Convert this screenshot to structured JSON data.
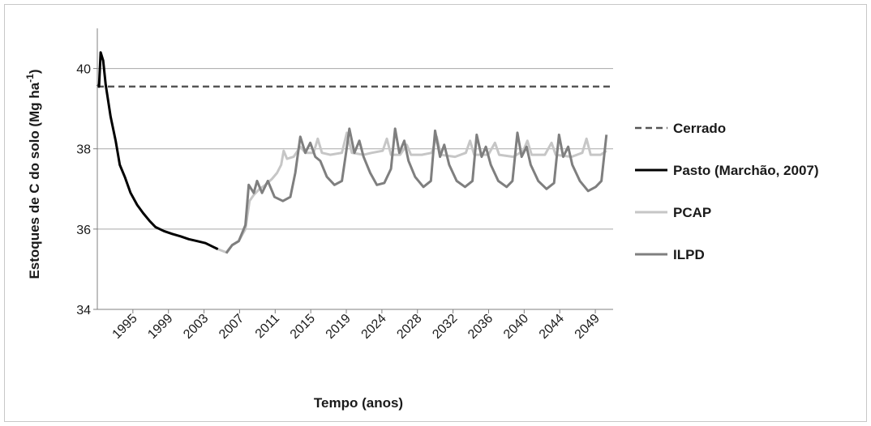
{
  "chart_data": {
    "type": "line",
    "xlabel": "Tempo (anos)",
    "ylabel_main": "Estoques de C do solo (Mg ha",
    "ylabel_sup": "-1",
    "ylabel_close": ")",
    "ylim": [
      34,
      41
    ],
    "yticks": [
      "34",
      "36",
      "38",
      "40"
    ],
    "xlim": [
      1991,
      2053
    ],
    "xtick_labels": [
      "1995",
      "1999",
      "2003",
      "2007",
      "2011",
      "2015",
      "2019",
      "2024",
      "2028",
      "2032",
      "2036",
      "2040",
      "2044",
      "2049"
    ],
    "grid": true,
    "legend_position": "right",
    "series": [
      {
        "name": "Cerrado",
        "color": "#555555",
        "dash": true,
        "points": [
          [
            1991,
            39.55
          ],
          [
            2053,
            39.55
          ]
        ]
      },
      {
        "name": "Pasto (Marchão, 2007)",
        "color": "#000000",
        "points": [
          [
            1991,
            39.6
          ],
          [
            1991.2,
            39.55
          ],
          [
            1991.4,
            40.4
          ],
          [
            1991.7,
            40.2
          ],
          [
            1992,
            39.6
          ],
          [
            1992.6,
            38.8
          ],
          [
            1993.2,
            38.2
          ],
          [
            1993.7,
            37.6
          ],
          [
            1994.3,
            37.3
          ],
          [
            1995,
            36.9
          ],
          [
            1995.8,
            36.6
          ],
          [
            1996.5,
            36.4
          ],
          [
            1997.3,
            36.2
          ],
          [
            1998,
            36.05
          ],
          [
            1999,
            35.95
          ],
          [
            2000,
            35.88
          ],
          [
            2001,
            35.82
          ],
          [
            2002,
            35.75
          ],
          [
            2003,
            35.7
          ],
          [
            2004,
            35.65
          ],
          [
            2005,
            35.55
          ],
          [
            2005.5,
            35.5
          ]
        ]
      },
      {
        "name": "PCAP",
        "color": "#c6c6c6",
        "points": [
          [
            2005.5,
            35.5
          ],
          [
            2006.5,
            35.42
          ],
          [
            2007.2,
            35.6
          ],
          [
            2008,
            35.7
          ],
          [
            2008.8,
            36.0
          ],
          [
            2009.3,
            36.7
          ],
          [
            2009.8,
            36.85
          ],
          [
            2010.5,
            37.0
          ],
          [
            2011.2,
            37.1
          ],
          [
            2012,
            37.25
          ],
          [
            2012.6,
            37.4
          ],
          [
            2013.1,
            37.6
          ],
          [
            2013.4,
            37.95
          ],
          [
            2013.8,
            37.75
          ],
          [
            2014.6,
            37.8
          ],
          [
            2015.4,
            38.05
          ],
          [
            2016,
            37.9
          ],
          [
            2017,
            37.9
          ],
          [
            2017.5,
            38.25
          ],
          [
            2018,
            37.9
          ],
          [
            2019,
            37.85
          ],
          [
            2020.4,
            37.9
          ],
          [
            2021,
            38.4
          ],
          [
            2021.6,
            37.9
          ],
          [
            2023,
            37.85
          ],
          [
            2024,
            37.9
          ],
          [
            2025.3,
            37.95
          ],
          [
            2025.8,
            38.25
          ],
          [
            2026.3,
            37.85
          ],
          [
            2027.4,
            37.85
          ],
          [
            2028.2,
            38.1
          ],
          [
            2028.7,
            37.85
          ],
          [
            2030,
            37.85
          ],
          [
            2031.2,
            37.9
          ],
          [
            2031.8,
            38.3
          ],
          [
            2032.3,
            37.85
          ],
          [
            2034,
            37.8
          ],
          [
            2035.3,
            37.9
          ],
          [
            2035.8,
            38.2
          ],
          [
            2036.3,
            37.85
          ],
          [
            2038,
            37.85
          ],
          [
            2038.8,
            38.15
          ],
          [
            2039.3,
            37.85
          ],
          [
            2041,
            37.8
          ],
          [
            2042.2,
            37.95
          ],
          [
            2042.7,
            38.2
          ],
          [
            2043.2,
            37.85
          ],
          [
            2044.8,
            37.85
          ],
          [
            2045.6,
            38.15
          ],
          [
            2046.1,
            37.85
          ],
          [
            2048,
            37.8
          ],
          [
            2049.3,
            37.9
          ],
          [
            2049.8,
            38.25
          ],
          [
            2050.3,
            37.85
          ],
          [
            2051.5,
            37.85
          ],
          [
            2052.2,
            37.95
          ]
        ]
      },
      {
        "name": "ILPD",
        "color": "#7f7f7f",
        "points": [
          [
            2006.5,
            35.4
          ],
          [
            2007.2,
            35.6
          ],
          [
            2008,
            35.7
          ],
          [
            2008.8,
            36.1
          ],
          [
            2009.2,
            37.1
          ],
          [
            2009.8,
            36.9
          ],
          [
            2010.2,
            37.2
          ],
          [
            2010.8,
            36.9
          ],
          [
            2011.5,
            37.2
          ],
          [
            2012.3,
            36.8
          ],
          [
            2013.3,
            36.7
          ],
          [
            2014.2,
            36.8
          ],
          [
            2014.8,
            37.4
          ],
          [
            2015.4,
            38.3
          ],
          [
            2016,
            37.9
          ],
          [
            2016.6,
            38.15
          ],
          [
            2017.2,
            37.8
          ],
          [
            2017.8,
            37.7
          ],
          [
            2018.6,
            37.3
          ],
          [
            2019.5,
            37.1
          ],
          [
            2020.4,
            37.2
          ],
          [
            2020.9,
            37.9
          ],
          [
            2021.3,
            38.5
          ],
          [
            2021.9,
            37.9
          ],
          [
            2022.5,
            38.2
          ],
          [
            2023,
            37.8
          ],
          [
            2023.8,
            37.4
          ],
          [
            2024.6,
            37.1
          ],
          [
            2025.5,
            37.15
          ],
          [
            2026.3,
            37.5
          ],
          [
            2026.8,
            38.5
          ],
          [
            2027.3,
            37.9
          ],
          [
            2027.9,
            38.2
          ],
          [
            2028.4,
            37.7
          ],
          [
            2029.2,
            37.3
          ],
          [
            2030.2,
            37.05
          ],
          [
            2031.1,
            37.2
          ],
          [
            2031.6,
            38.45
          ],
          [
            2032.2,
            37.8
          ],
          [
            2032.7,
            38.1
          ],
          [
            2033.3,
            37.6
          ],
          [
            2034.2,
            37.2
          ],
          [
            2035.2,
            37.05
          ],
          [
            2036.1,
            37.2
          ],
          [
            2036.6,
            38.35
          ],
          [
            2037.2,
            37.8
          ],
          [
            2037.7,
            38.05
          ],
          [
            2038.3,
            37.6
          ],
          [
            2039.2,
            37.2
          ],
          [
            2040.2,
            37.05
          ],
          [
            2040.9,
            37.2
          ],
          [
            2041.5,
            38.4
          ],
          [
            2042,
            37.8
          ],
          [
            2042.6,
            38.05
          ],
          [
            2043.1,
            37.6
          ],
          [
            2044,
            37.2
          ],
          [
            2045,
            37.0
          ],
          [
            2045.9,
            37.15
          ],
          [
            2046.5,
            38.35
          ],
          [
            2047,
            37.8
          ],
          [
            2047.6,
            38.05
          ],
          [
            2048.1,
            37.6
          ],
          [
            2049,
            37.2
          ],
          [
            2050,
            36.95
          ],
          [
            2050.9,
            37.05
          ],
          [
            2051.6,
            37.2
          ],
          [
            2052.2,
            38.35
          ]
        ]
      }
    ]
  }
}
